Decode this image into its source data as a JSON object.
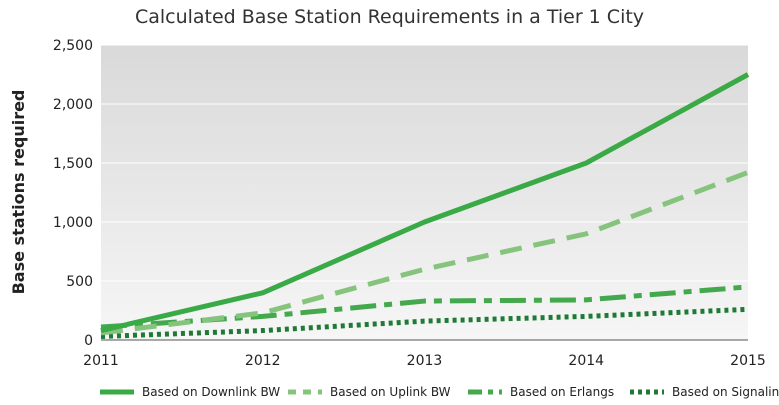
{
  "chart_data": {
    "type": "line",
    "title": "Calculated Base Station Requirements in a Tier 1 City",
    "xlabel": "",
    "ylabel": "Base stations required",
    "x": [
      "2011",
      "2012",
      "2013",
      "2014",
      "2015"
    ],
    "y_ticks": [
      "0",
      "500",
      "1,000",
      "1,500",
      "2,000",
      "2,500"
    ],
    "ylim": [
      0,
      2500
    ],
    "legend_position": "bottom",
    "series": [
      {
        "name": "Based on Downlink BW",
        "values": [
          80,
          400,
          1000,
          1500,
          2250
        ],
        "style": "solid",
        "color": "#3aaa46"
      },
      {
        "name": "Based on Uplink BW",
        "values": [
          60,
          230,
          600,
          900,
          1420
        ],
        "style": "long-dash",
        "color": "#86c47e"
      },
      {
        "name": "Based on Erlangs",
        "values": [
          110,
          200,
          330,
          340,
          450
        ],
        "style": "dash-dot",
        "color": "#44a84d"
      },
      {
        "name": "Based on Signaling",
        "values": [
          30,
          80,
          160,
          200,
          260
        ],
        "style": "dotted",
        "color": "#1f7a36"
      }
    ]
  }
}
